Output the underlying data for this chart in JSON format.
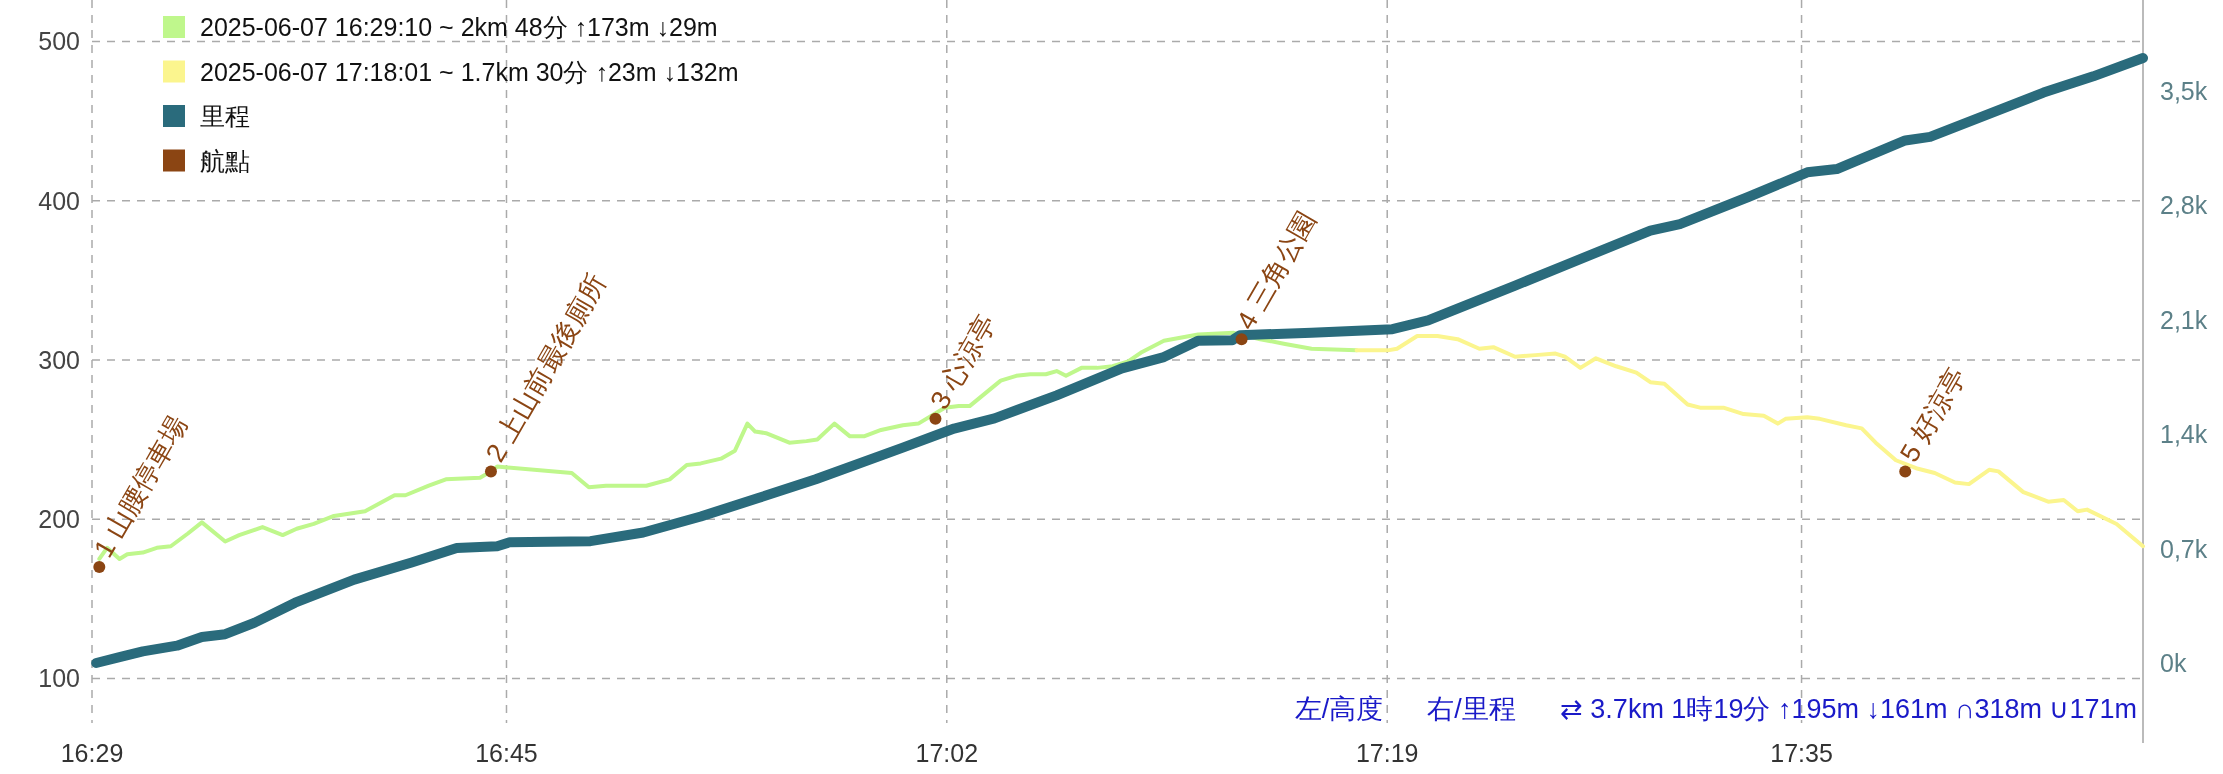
{
  "chart_data": {
    "type": "line",
    "xlim": [
      16.4833,
      17.803
    ],
    "xticks": [
      {
        "value": 16.4833,
        "label": "16:29"
      },
      {
        "value": 16.75,
        "label": "16:45"
      },
      {
        "value": 17.0333,
        "label": "17:02"
      },
      {
        "value": 17.3167,
        "label": "17:19"
      },
      {
        "value": 17.5833,
        "label": "17:35"
      }
    ],
    "ylim": [
      72,
      526
    ],
    "yticks": [
      100,
      200,
      300,
      400,
      500
    ],
    "y2lim": [
      -367,
      4055
    ],
    "y2ticks": [
      {
        "value": 0,
        "label": "0k"
      },
      {
        "value": 700,
        "label": "0,7k"
      },
      {
        "value": 1400,
        "label": "1,4k"
      },
      {
        "value": 2100,
        "label": "2,1k"
      },
      {
        "value": 2800,
        "label": "2,8k"
      },
      {
        "value": 3500,
        "label": "3,5k"
      }
    ],
    "grid": true,
    "legend": "top left",
    "annotations": [
      "左/高度",
      "右/里程",
      "⇄ 3.7km 1時19分 ↑195m ↓161m ∩318m ∪171m",
      {
        "text": "1 山腰停車場",
        "x": 16.488,
        "y": 170
      },
      {
        "text": "2 上山前最後廁所",
        "x": 16.74,
        "y": 230
      },
      {
        "text": "3 心涼亭",
        "x": 17.026,
        "y": 263
      },
      {
        "text": "4 三角公園",
        "x": 17.223,
        "y": 313
      },
      {
        "text": "5 好涼亭",
        "x": 17.65,
        "y": 230
      }
    ],
    "series": [
      {
        "name": "2025-06-07 16:29:10 ~ 2km 48分 ↑173m ↓29m",
        "color": "#bff78c",
        "x": [
          16.488,
          16.493,
          16.501,
          16.506,
          16.516,
          16.525,
          16.534,
          16.545,
          16.554,
          16.569,
          16.578,
          16.593,
          16.606,
          16.615,
          16.626,
          16.639,
          16.659,
          16.678,
          16.685,
          16.7,
          16.711,
          16.733,
          16.74,
          16.744,
          16.792,
          16.803,
          16.814,
          16.84,
          16.855,
          16.866,
          16.875,
          16.888,
          16.897,
          16.905,
          16.91,
          16.917,
          16.932,
          16.943,
          16.95,
          16.961,
          16.971,
          16.98,
          16.991,
          17.005,
          17.015,
          17.032,
          17.041,
          17.048,
          17.058,
          17.068,
          17.078,
          17.087,
          17.097,
          17.104,
          17.11,
          17.12,
          17.13,
          17.14,
          17.15,
          17.159,
          17.173,
          17.195,
          17.218,
          17.235,
          17.251,
          17.268,
          17.297
        ],
        "values": [
          175,
          182,
          175,
          178,
          179,
          182,
          183,
          191,
          198,
          186,
          190,
          195,
          190,
          194,
          197,
          202,
          205,
          215,
          215,
          221,
          225,
          226,
          230,
          233,
          229,
          220,
          221,
          221,
          225,
          234,
          235,
          238,
          243,
          260,
          255,
          254,
          248,
          249,
          250,
          260,
          252,
          252,
          256,
          259,
          260,
          270,
          271,
          271,
          279,
          287,
          290,
          291,
          291,
          293,
          290,
          295,
          295,
          296,
          299,
          305,
          312,
          316,
          317,
          313,
          310,
          307,
          306
        ]
      },
      {
        "name": "2025-06-07 17:18:01 ~ 1.7km 30分 ↑23m ↓132m",
        "color": "#fbf58e",
        "x": [
          17.297,
          17.317,
          17.323,
          17.336,
          17.349,
          17.362,
          17.376,
          17.385,
          17.399,
          17.412,
          17.425,
          17.431,
          17.441,
          17.451,
          17.464,
          17.477,
          17.486,
          17.495,
          17.51,
          17.518,
          17.533,
          17.546,
          17.559,
          17.568,
          17.573,
          17.587,
          17.595,
          17.612,
          17.622,
          17.631,
          17.644,
          17.657,
          17.669,
          17.682,
          17.691,
          17.704,
          17.71,
          17.726,
          17.742,
          17.752,
          17.761,
          17.767,
          17.786,
          17.803
        ],
        "values": [
          306,
          306,
          307,
          315,
          315,
          313,
          307,
          308,
          302,
          303,
          304,
          302,
          295,
          301,
          296,
          292,
          286,
          285,
          272,
          270,
          270,
          266,
          265,
          260,
          263,
          264,
          263,
          259,
          257,
          248,
          237,
          232,
          229,
          223,
          222,
          231,
          230,
          217,
          211,
          212,
          205,
          206,
          197,
          183
        ]
      },
      {
        "name": "里程",
        "color": "#2a6b7c",
        "axis": "y2",
        "x": [
          16.486,
          16.501,
          16.516,
          16.538,
          16.554,
          16.569,
          16.588,
          16.614,
          16.652,
          16.689,
          16.718,
          16.744,
          16.752,
          16.804,
          16.838,
          16.875,
          16.912,
          16.949,
          17.005,
          17.038,
          17.064,
          17.104,
          17.146,
          17.173,
          17.195,
          17.217,
          17.222,
          17.268,
          17.32,
          17.343,
          17.399,
          17.431,
          17.486,
          17.505,
          17.549,
          17.587,
          17.606,
          17.65,
          17.666,
          17.739,
          17.771,
          17.803
        ],
        "values": [
          0,
          36,
          71,
          106,
          159,
          176,
          247,
          369,
          510,
          615,
          703,
          714,
          738,
          745,
          798,
          896,
          1009,
          1124,
          1317,
          1434,
          1496,
          1637,
          1802,
          1871,
          1971,
          1974,
          2005,
          2020,
          2042,
          2095,
          2308,
          2432,
          2645,
          2684,
          2850,
          3001,
          3021,
          3196,
          3218,
          3489,
          3588,
          3700
        ]
      },
      {
        "name": "航點",
        "type": "scatter",
        "marker": "circle",
        "color": "#8b4513",
        "x": [
          16.488,
          16.74,
          17.026,
          17.223,
          17.65
        ],
        "values": [
          170,
          230,
          263,
          313,
          230
        ]
      }
    ]
  }
}
